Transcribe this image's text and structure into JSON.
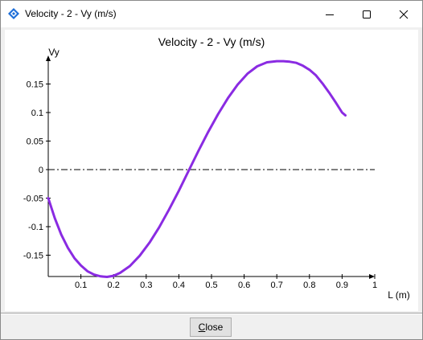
{
  "window": {
    "title": "Velocity - 2 - Vy (m/s)",
    "icon": "diamond-app-icon"
  },
  "controls": {
    "minimize_icon": "minimize-icon",
    "maximize_icon": "maximize-icon",
    "close_icon": "close-icon"
  },
  "footer": {
    "close_label_mnemonic": "C",
    "close_label_rest": "lose"
  },
  "colors": {
    "series": "#8a2be2",
    "axis": "#000000",
    "accent_icon": "#1e6fd9"
  },
  "chart_data": {
    "type": "line",
    "title": "Velocity - 2 - Vy (m/s)",
    "xlabel": "L (m)",
    "ylabel": "Vy",
    "xlim": [
      0,
      1
    ],
    "ylim": [
      -0.19,
      0.19
    ],
    "x_ticks": [
      "0.1",
      "0.2",
      "0.3",
      "0.4",
      "0.5",
      "0.6",
      "0.7",
      "0.8",
      "0.9",
      "1"
    ],
    "y_ticks": [
      "0.15",
      "0.1",
      "0.05",
      "0",
      "-0.05",
      "-0.1",
      "-0.15"
    ],
    "zero_line": "dash-dot",
    "grid": false,
    "legend": "none",
    "series": [
      {
        "x": [
          0.0,
          0.02,
          0.04,
          0.06,
          0.08,
          0.1,
          0.12,
          0.14,
          0.16,
          0.18,
          0.2,
          0.22,
          0.25,
          0.28,
          0.31,
          0.34,
          0.37,
          0.4,
          0.43,
          0.46,
          0.49,
          0.52,
          0.55,
          0.58,
          0.61,
          0.64,
          0.67,
          0.7,
          0.72,
          0.74,
          0.76,
          0.78,
          0.8,
          0.82,
          0.84,
          0.86,
          0.88,
          0.9,
          0.91
        ],
        "y": [
          -0.05,
          -0.085,
          -0.114,
          -0.137,
          -0.155,
          -0.168,
          -0.178,
          -0.184,
          -0.187,
          -0.188,
          -0.186,
          -0.181,
          -0.169,
          -0.151,
          -0.128,
          -0.101,
          -0.07,
          -0.037,
          -0.002,
          0.033,
          0.066,
          0.097,
          0.125,
          0.149,
          0.168,
          0.181,
          0.188,
          0.19,
          0.19,
          0.189,
          0.187,
          0.182,
          0.175,
          0.165,
          0.151,
          0.135,
          0.118,
          0.1,
          0.095
        ]
      }
    ]
  }
}
